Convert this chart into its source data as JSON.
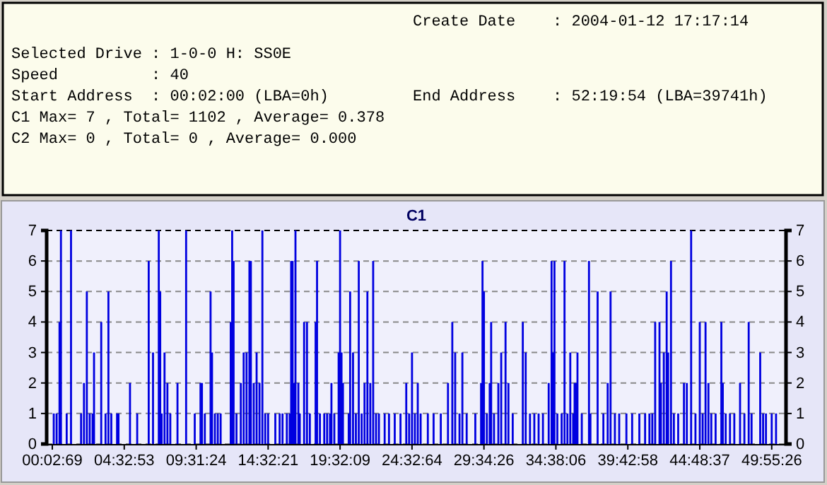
{
  "chart_data": {
    "type": "bar",
    "title": "C1",
    "annotations": [
      "Create Date    : 2004-01-12 17:17:14",
      "Selected Drive : 1-0-0 H: SS0E",
      "Speed          : 40",
      "Start Address  : 00:02:00 (LBA=0h)",
      "End Address    : 52:19:54 (LBA=39741h)",
      "C1 Max= 7 , Total= 1102 , Average= 0.378",
      "C2 Max= 0 , Total= 0 , Average= 0.000"
    ],
    "categories": [
      "00:02:69",
      null,
      null,
      null,
      null,
      null,
      null,
      null,
      null,
      null,
      null,
      null,
      null,
      null,
      null,
      null,
      null,
      null,
      null,
      null,
      null,
      null,
      null,
      null,
      null,
      null,
      null,
      null,
      null,
      null,
      null,
      null,
      null,
      null,
      null,
      null,
      null,
      null,
      null,
      null,
      null,
      null,
      null,
      null,
      null,
      null,
      null,
      null,
      null,
      null,
      "04:32:53",
      null,
      null,
      null,
      null,
      null,
      null,
      null,
      null,
      null,
      null,
      null,
      null,
      null,
      null,
      null,
      null,
      null,
      null,
      null,
      null,
      null,
      null,
      null,
      null,
      null,
      null,
      null,
      null,
      null,
      null,
      null,
      null,
      null,
      null,
      null,
      null,
      null,
      null,
      null,
      null,
      null,
      null,
      null,
      null,
      null,
      null,
      null,
      null,
      null,
      "09:31:24",
      null,
      null,
      null,
      null,
      null,
      null,
      null,
      null,
      null,
      null,
      null,
      null,
      null,
      null,
      null,
      null,
      null,
      null,
      null,
      null,
      null,
      null,
      null,
      null,
      null,
      null,
      null,
      null,
      null,
      null,
      null,
      null,
      null,
      null,
      null,
      null,
      null,
      null,
      null,
      null,
      null,
      null,
      null,
      null,
      null,
      null,
      null,
      null,
      null,
      "14:32:21",
      null,
      null,
      null,
      null,
      null,
      null,
      null,
      null,
      null,
      null,
      null,
      null,
      null,
      null,
      null,
      null,
      null,
      null,
      null,
      null,
      null,
      null,
      null,
      null,
      null,
      null,
      null,
      null,
      null,
      null,
      null,
      null,
      null,
      null,
      null,
      null,
      null,
      null,
      null,
      null,
      null,
      null,
      null,
      null,
      null,
      null,
      null,
      null,
      null,
      "19:32:09",
      null,
      null,
      null,
      null,
      null,
      null,
      null,
      null,
      null,
      null,
      null,
      null,
      null,
      null,
      null,
      null,
      null,
      null,
      null,
      null,
      null,
      null,
      null,
      null,
      null,
      null,
      null,
      null,
      null,
      null,
      null,
      null,
      null,
      null,
      null,
      null,
      null,
      null,
      null,
      null,
      null,
      null,
      null,
      null,
      null,
      null,
      null,
      null,
      null,
      "24:32:64",
      null,
      null,
      null,
      null,
      null,
      null,
      null,
      null,
      null,
      null,
      null,
      null,
      null,
      null,
      null,
      null,
      null,
      null,
      null,
      null,
      null,
      null,
      null,
      null,
      null,
      null,
      null,
      null,
      null,
      null,
      null,
      null,
      null,
      null,
      null,
      null,
      null,
      null,
      null,
      null,
      null,
      null,
      null,
      null,
      null,
      null,
      null,
      null,
      null,
      "29:34:26",
      null,
      null,
      null,
      null,
      null,
      null,
      null,
      null,
      null,
      null,
      null,
      null,
      null,
      null,
      null,
      null,
      null,
      null,
      null,
      null,
      null,
      null,
      null,
      null,
      null,
      null,
      null,
      null,
      null,
      null,
      null,
      null,
      null,
      null,
      null,
      null,
      null,
      null,
      null,
      null,
      null,
      null,
      null,
      null,
      null,
      null,
      null,
      null,
      null,
      "34:38:06",
      null,
      null,
      null,
      null,
      null,
      null,
      null,
      null,
      null,
      null,
      null,
      null,
      null,
      null,
      null,
      null,
      null,
      null,
      null,
      null,
      null,
      null,
      null,
      null,
      null,
      null,
      null,
      null,
      null,
      null,
      null,
      null,
      null,
      null,
      null,
      null,
      null,
      null,
      null,
      null,
      null,
      null,
      null,
      null,
      null,
      null,
      null,
      null,
      null,
      "39:42:58",
      null,
      null,
      null,
      null,
      null,
      null,
      null,
      null,
      null,
      null,
      null,
      null,
      null,
      null,
      null,
      null,
      null,
      null,
      null,
      null,
      null,
      null,
      null,
      null,
      null,
      null,
      null,
      null,
      null,
      null,
      null,
      null,
      null,
      null,
      null,
      null,
      null,
      null,
      null,
      null,
      null,
      null,
      null,
      null,
      null,
      null,
      null,
      null,
      null,
      "44:48:37",
      null,
      null,
      null,
      null,
      null,
      null,
      null,
      null,
      null,
      null,
      null,
      null,
      null,
      null,
      null,
      null,
      null,
      null,
      null,
      null,
      null,
      null,
      null,
      null,
      null,
      null,
      null,
      null,
      null,
      null,
      null,
      null,
      null,
      null,
      null,
      null,
      null,
      null,
      null,
      null,
      null,
      null,
      null,
      null,
      null,
      null,
      null,
      null,
      null,
      "49:55:26",
      null,
      null,
      null,
      null,
      null,
      null
    ],
    "series": [
      {
        "color": "#0000e0",
        "values": [
          0,
          1,
          0,
          1,
          0,
          4,
          7,
          0,
          0,
          0,
          1,
          0,
          0,
          7,
          0,
          0,
          0,
          0,
          0,
          0,
          1,
          0,
          2,
          0,
          5,
          0,
          1,
          0,
          1,
          3,
          0,
          0,
          0,
          0,
          4,
          0,
          0,
          1,
          0,
          5,
          0,
          1,
          0,
          0,
          0,
          1,
          1,
          0,
          0,
          0,
          0,
          0,
          0,
          0,
          2,
          0,
          0,
          0,
          0,
          1,
          0,
          0,
          0,
          0,
          0,
          0,
          0,
          6,
          0,
          0,
          3,
          0,
          0,
          0,
          7,
          5,
          1,
          0,
          3,
          0,
          2,
          0,
          1,
          0,
          0,
          0,
          0,
          2,
          0,
          0,
          0,
          0,
          0,
          7,
          0,
          0,
          0,
          0,
          0,
          1,
          0,
          0,
          0,
          2,
          2,
          0,
          1,
          0,
          0,
          0,
          5,
          3,
          0,
          1,
          0,
          1,
          0,
          1,
          0,
          0,
          0,
          0,
          0,
          0,
          4,
          7,
          6,
          0,
          1,
          0,
          0,
          2,
          0,
          3,
          0,
          3,
          0,
          6,
          6,
          0,
          2,
          0,
          3,
          0,
          2,
          0,
          7,
          0,
          1,
          0,
          1,
          0,
          0,
          0,
          0,
          1,
          0,
          0,
          1,
          0,
          1,
          0,
          0,
          1,
          0,
          1,
          6,
          6,
          2,
          7,
          0,
          2,
          1,
          0,
          0,
          4,
          0,
          4,
          0,
          1,
          0,
          0,
          0,
          4,
          6,
          0,
          1,
          0,
          0,
          1,
          0,
          1,
          0,
          1,
          2,
          0,
          1,
          0,
          0,
          3,
          7,
          3,
          2,
          0,
          0,
          0,
          1,
          5,
          0,
          3,
          0,
          1,
          0,
          6,
          0,
          1,
          0,
          2,
          0,
          5,
          0,
          2,
          0,
          6,
          0,
          1,
          0,
          1,
          0,
          0,
          0,
          1,
          0,
          0,
          1,
          0,
          0,
          0,
          1,
          0,
          0,
          0,
          1,
          0,
          0,
          0,
          2,
          0,
          1,
          0,
          3,
          0,
          1,
          0,
          2,
          0,
          1,
          0,
          0,
          0,
          0,
          1,
          0,
          0,
          0,
          1,
          0,
          0,
          0,
          0,
          1,
          0,
          0,
          0,
          0,
          2,
          0,
          0,
          4,
          0,
          3,
          0,
          0,
          1,
          0,
          3,
          0,
          0,
          1,
          0,
          0,
          0,
          0,
          0,
          1,
          0,
          0,
          0,
          2,
          6,
          5,
          0,
          1,
          0,
          2,
          4,
          0,
          1,
          0,
          0,
          2,
          0,
          3,
          0,
          0,
          4,
          0,
          2,
          0,
          0,
          1,
          0,
          0,
          0,
          0,
          0,
          0,
          4,
          0,
          3,
          0,
          0,
          1,
          0,
          0,
          1,
          0,
          0,
          1,
          0,
          0,
          1,
          0,
          0,
          0,
          2,
          0,
          6,
          3,
          6,
          0,
          1,
          0,
          0,
          1,
          0,
          6,
          0,
          1,
          0,
          3,
          0,
          1,
          2,
          2,
          3,
          0,
          0,
          1,
          0,
          0,
          0,
          0,
          6,
          1,
          0,
          0,
          0,
          0,
          5,
          0,
          0,
          0,
          1,
          0,
          0,
          2,
          0,
          5,
          0,
          0,
          1,
          0,
          0,
          1,
          0,
          0,
          0,
          0,
          1,
          0,
          0,
          0,
          1,
          0,
          0,
          0,
          0,
          1,
          0,
          0,
          0,
          1,
          0,
          0,
          1,
          0,
          1,
          0,
          4,
          0,
          0,
          4,
          2,
          0,
          3,
          0,
          5,
          3,
          0,
          6,
          0,
          1,
          0,
          0,
          1,
          0,
          0,
          0,
          2,
          0,
          2,
          0,
          0,
          7,
          0,
          0,
          1,
          0,
          0,
          4,
          0,
          1,
          0,
          4,
          0,
          2,
          0,
          1,
          0,
          0,
          1,
          0,
          0,
          0,
          4,
          2,
          0,
          1,
          0,
          0,
          1,
          0,
          0,
          1,
          0,
          0,
          0,
          2,
          0,
          0,
          1,
          0,
          0,
          4,
          0,
          1,
          0,
          0,
          0,
          0,
          0,
          3,
          0,
          1,
          0,
          1,
          0,
          0,
          0,
          1,
          0,
          0,
          1,
          0,
          0,
          0
        ]
      }
    ],
    "ylim": [
      0,
      7
    ],
    "yticks": [
      0,
      1,
      2,
      3,
      4,
      5,
      6,
      7
    ],
    "y2lim": [
      0,
      7
    ],
    "y2ticks": [
      0,
      1,
      2,
      3,
      4,
      5,
      6,
      7
    ],
    "grid": "y"
  }
}
